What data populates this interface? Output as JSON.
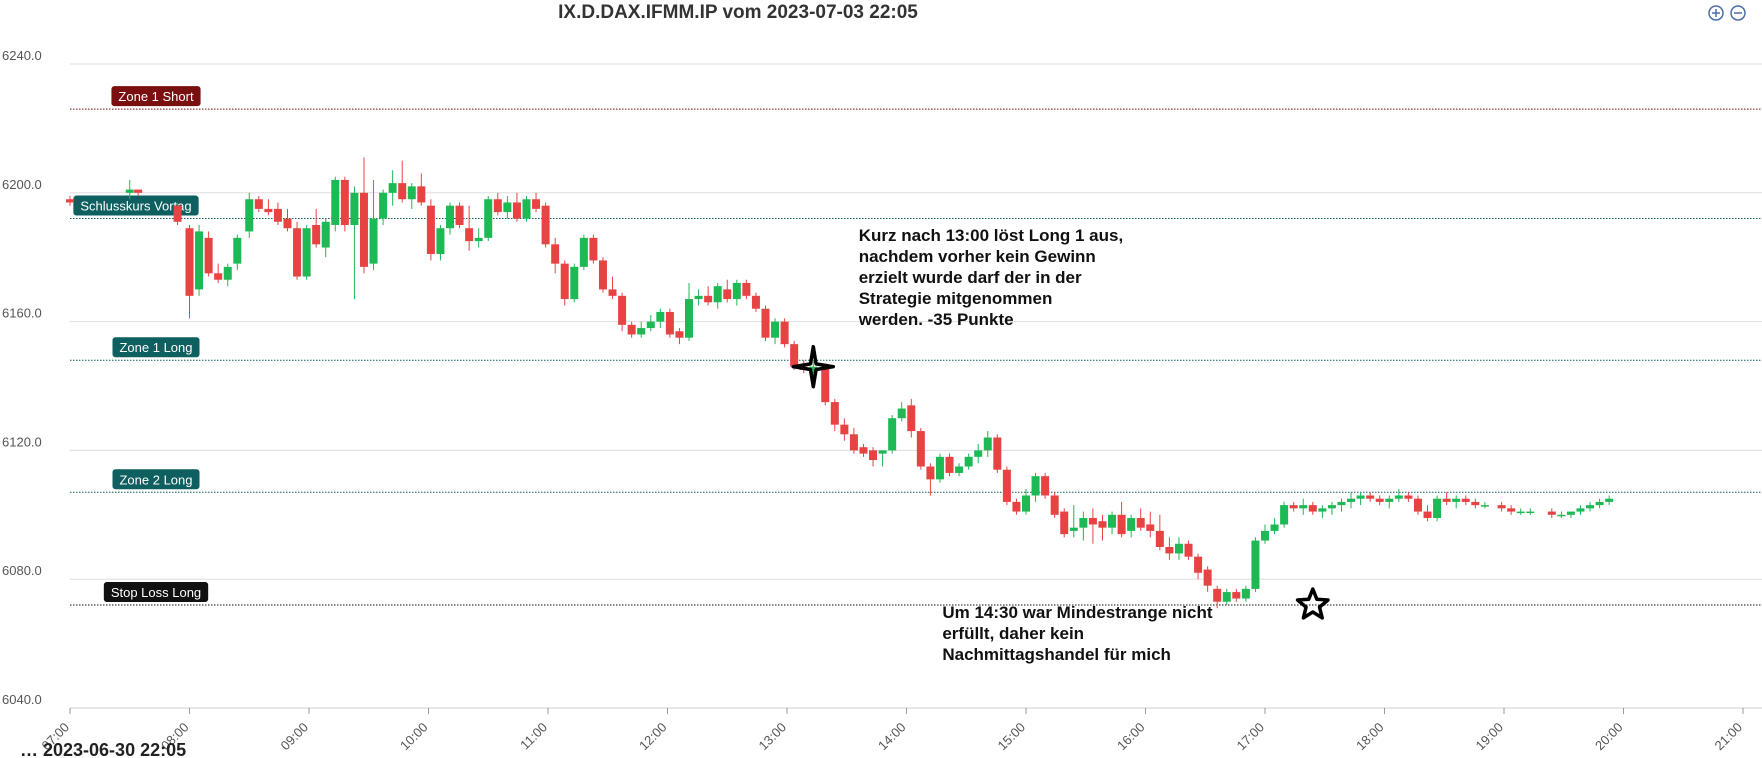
{
  "colors": {
    "bull": "#1db954",
    "bear": "#e74343",
    "grid": "#dddddd",
    "zone_short": "#7a0f0f",
    "zone_long": "#0e5f5f",
    "stop_loss": "#111111"
  },
  "toolbar": {
    "zoom_in_icon": "plus-circle-icon",
    "zoom_out_icon": "minus-circle-icon"
  },
  "chart_data": {
    "type": "candlestick",
    "title": "IX.D.DAX.IFMM.IP vom 2023-07-03 22:05",
    "footer_partial": "… 2023-06-30 22:05",
    "ylim": [
      6040,
      6240
    ],
    "yticks": [
      "6240.0",
      "6200.0",
      "6160.0",
      "6120.0",
      "6080.0",
      "6040.0"
    ],
    "xlim": [
      7.0,
      21.0
    ],
    "xtick_values": [
      7,
      8,
      9,
      10,
      11,
      12,
      13,
      14,
      15,
      16,
      17,
      18,
      19,
      20,
      21
    ],
    "xticks": [
      "07:00",
      "08:00",
      "09:00",
      "10:00",
      "11:00",
      "12:00",
      "13:00",
      "14:00",
      "15:00",
      "16:00",
      "17:00",
      "18:00",
      "19:00",
      "20:00",
      "21:00"
    ],
    "grid": true,
    "levels": [
      {
        "label": "Zone 1 Short",
        "value": 6226,
        "color_key": "zone_short"
      },
      {
        "label": "Schlusskurs Vortag",
        "value": 6192,
        "color_key": "zone_long"
      },
      {
        "label": "Zone 1 Long",
        "value": 6148,
        "color_key": "zone_long"
      },
      {
        "label": "Zone 2 Long",
        "value": 6107,
        "color_key": "zone_long"
      },
      {
        "label": "Stop Loss Long",
        "value": 6072,
        "color_key": "stop_loss"
      }
    ],
    "annotations": [
      {
        "lines": [
          "Kurz nach 13:00 löst Long 1 aus,",
          "nachdem vorher kein Gewinn",
          "erzielt wurde darf der in der",
          "Strategie mitgenommen",
          "werden. -35 Punkte"
        ],
        "x": 13.6,
        "y": 6185
      },
      {
        "lines": [
          "Um 14:30 war Mindestrange nicht",
          "erfüllt, daher kein",
          "Nachmittagshandel für mich"
        ],
        "x": 14.3,
        "y": 6068
      }
    ],
    "markers": [
      {
        "shape": "four-point-star",
        "x": 13.22,
        "y": 6146
      },
      {
        "shape": "five-point-star",
        "x": 17.4,
        "y": 6072
      }
    ],
    "candles": [
      [
        7.0,
        6198,
        6199,
        6196,
        6197
      ],
      [
        7.5,
        6200,
        6204,
        6198,
        6201
      ],
      [
        7.57,
        6201,
        6201,
        6199,
        6200
      ],
      [
        7.9,
        6196,
        6197,
        6190,
        6191
      ],
      [
        8.0,
        6189,
        6190,
        6161,
        6168
      ],
      [
        8.08,
        6170,
        6190,
        6168,
        6188
      ],
      [
        8.16,
        6186,
        6188,
        6174,
        6175
      ],
      [
        8.24,
        6175,
        6178,
        6172,
        6173
      ],
      [
        8.32,
        6173,
        6178,
        6171,
        6177
      ],
      [
        8.4,
        6178,
        6187,
        6176,
        6186
      ],
      [
        8.5,
        6188,
        6200,
        6186,
        6198
      ],
      [
        8.58,
        6198,
        6199,
        6194,
        6195
      ],
      [
        8.66,
        6195,
        6198,
        6193,
        6194
      ],
      [
        8.74,
        6195,
        6197,
        6190,
        6191
      ],
      [
        8.82,
        6192,
        6195,
        6188,
        6189
      ],
      [
        8.9,
        6189,
        6191,
        6173,
        6174
      ],
      [
        8.98,
        6174,
        6190,
        6173,
        6189
      ],
      [
        9.06,
        6190,
        6195,
        6183,
        6184
      ],
      [
        9.14,
        6183,
        6192,
        6180,
        6191
      ],
      [
        9.22,
        6190,
        6205,
        6188,
        6204
      ],
      [
        9.3,
        6204,
        6205,
        6188,
        6190
      ],
      [
        9.38,
        6190,
        6202,
        6167,
        6200
      ],
      [
        9.46,
        6200,
        6211,
        6175,
        6177
      ],
      [
        9.54,
        6178,
        6204,
        6176,
        6192
      ],
      [
        9.62,
        6192,
        6201,
        6190,
        6200
      ],
      [
        9.7,
        6200,
        6207,
        6196,
        6203
      ],
      [
        9.78,
        6203,
        6210,
        6197,
        6198
      ],
      [
        9.86,
        6198,
        6203,
        6195,
        6202
      ],
      [
        9.94,
        6202,
        6206,
        6196,
        6197
      ],
      [
        10.02,
        6196,
        6198,
        6179,
        6181
      ],
      [
        10.1,
        6181,
        6190,
        6179,
        6189
      ],
      [
        10.18,
        6189,
        6197,
        6187,
        6196
      ],
      [
        10.26,
        6196,
        6197,
        6189,
        6190
      ],
      [
        10.34,
        6189,
        6196,
        6182,
        6185
      ],
      [
        10.42,
        6185,
        6189,
        6183,
        6186
      ],
      [
        10.5,
        6186,
        6199,
        6185,
        6198
      ],
      [
        10.58,
        6198,
        6200,
        6193,
        6194
      ],
      [
        10.66,
        6194,
        6199,
        6192,
        6197
      ],
      [
        10.74,
        6197,
        6200,
        6191,
        6192
      ],
      [
        10.82,
        6192,
        6199,
        6191,
        6198
      ],
      [
        10.9,
        6198,
        6200,
        6194,
        6195
      ],
      [
        10.98,
        6196,
        6197,
        6183,
        6184
      ],
      [
        11.06,
        6184,
        6186,
        6175,
        6178
      ],
      [
        11.14,
        6178,
        6179,
        6165,
        6167
      ],
      [
        11.22,
        6167,
        6178,
        6166,
        6177
      ],
      [
        11.3,
        6177,
        6187,
        6176,
        6186
      ],
      [
        11.38,
        6186,
        6187,
        6178,
        6179
      ],
      [
        11.46,
        6179,
        6180,
        6169,
        6170
      ],
      [
        11.54,
        6170,
        6174,
        6167,
        6168
      ],
      [
        11.62,
        6168,
        6169,
        6157,
        6159
      ],
      [
        11.7,
        6159,
        6160,
        6155,
        6156
      ],
      [
        11.78,
        6156,
        6160,
        6155,
        6158
      ],
      [
        11.86,
        6158,
        6162,
        6157,
        6160
      ],
      [
        11.94,
        6160,
        6164,
        6158,
        6163
      ],
      [
        12.02,
        6163,
        6164,
        6155,
        6156
      ],
      [
        12.1,
        6157,
        6158,
        6153,
        6155
      ],
      [
        12.18,
        6155,
        6172,
        6154,
        6167
      ],
      [
        12.26,
        6167,
        6170,
        6165,
        6168
      ],
      [
        12.34,
        6168,
        6171,
        6165,
        6166
      ],
      [
        12.42,
        6166,
        6172,
        6164,
        6171
      ],
      [
        12.5,
        6170,
        6173,
        6166,
        6167
      ],
      [
        12.58,
        6167,
        6173,
        6165,
        6172
      ],
      [
        12.66,
        6172,
        6173,
        6167,
        6168
      ],
      [
        12.74,
        6168,
        6169,
        6163,
        6164
      ],
      [
        12.82,
        6164,
        6165,
        6154,
        6155
      ],
      [
        12.9,
        6155,
        6161,
        6153,
        6160
      ],
      [
        12.98,
        6160,
        6161,
        6152,
        6153
      ],
      [
        13.06,
        6153,
        6154,
        6145,
        6146
      ],
      [
        13.14,
        6146,
        6148,
        6144,
        6145
      ],
      [
        13.22,
        6144,
        6148,
        6143,
        6146
      ],
      [
        13.32,
        6146,
        6147,
        6134,
        6135
      ],
      [
        13.4,
        6135,
        6136,
        6126,
        6128
      ],
      [
        13.48,
        6128,
        6130,
        6123,
        6125
      ],
      [
        13.56,
        6125,
        6127,
        6119,
        6120
      ],
      [
        13.64,
        6121,
        6122,
        6118,
        6119
      ],
      [
        13.72,
        6120,
        6121,
        6115,
        6117
      ],
      [
        13.8,
        6119,
        6120,
        6115,
        6120
      ],
      [
        13.88,
        6120,
        6131,
        6119,
        6130
      ],
      [
        13.96,
        6130,
        6135,
        6129,
        6133
      ],
      [
        14.04,
        6134,
        6136,
        6124,
        6126
      ],
      [
        14.12,
        6126,
        6127,
        6114,
        6115
      ],
      [
        14.2,
        6115,
        6116,
        6106,
        6111
      ],
      [
        14.28,
        6111,
        6119,
        6110,
        6118
      ],
      [
        14.36,
        6118,
        6119,
        6112,
        6113
      ],
      [
        14.44,
        6113,
        6116,
        6112,
        6115
      ],
      [
        14.52,
        6115,
        6119,
        6114,
        6118
      ],
      [
        14.6,
        6118,
        6122,
        6116,
        6120
      ],
      [
        14.68,
        6120,
        6126,
        6118,
        6124
      ],
      [
        14.76,
        6124,
        6125,
        6113,
        6114
      ],
      [
        14.84,
        6114,
        6115,
        6103,
        6104
      ],
      [
        14.92,
        6104,
        6105,
        6100,
        6101
      ],
      [
        15.0,
        6101,
        6108,
        6100,
        6106
      ],
      [
        15.08,
        6106,
        6113,
        6104,
        6112
      ],
      [
        15.16,
        6112,
        6113,
        6105,
        6106
      ],
      [
        15.24,
        6106,
        6107,
        6099,
        6100
      ],
      [
        15.32,
        6101,
        6102,
        6093,
        6094
      ],
      [
        15.4,
        6095,
        6103,
        6093,
        6096
      ],
      [
        15.48,
        6096,
        6101,
        6092,
        6099
      ],
      [
        15.56,
        6099,
        6102,
        6091,
        6097
      ],
      [
        15.64,
        6098,
        6100,
        6092,
        6096
      ],
      [
        15.72,
        6096,
        6101,
        6094,
        6100
      ],
      [
        15.8,
        6100,
        6104,
        6093,
        6094
      ],
      [
        15.88,
        6095,
        6100,
        6093,
        6099
      ],
      [
        15.96,
        6099,
        6102,
        6095,
        6096
      ],
      [
        16.04,
        6097,
        6101,
        6093,
        6095
      ],
      [
        16.12,
        6095,
        6100,
        6089,
        6090
      ],
      [
        16.2,
        6090,
        6093,
        6086,
        6088
      ],
      [
        16.28,
        6088,
        6093,
        6086,
        6091
      ],
      [
        16.36,
        6091,
        6092,
        6086,
        6087
      ],
      [
        16.44,
        6087,
        6088,
        6080,
        6082
      ],
      [
        16.52,
        6083,
        6084,
        6076,
        6078
      ],
      [
        16.6,
        6077,
        6078,
        6071,
        6073
      ],
      [
        16.68,
        6073,
        6077,
        6072,
        6076
      ],
      [
        16.76,
        6076,
        6077,
        6073,
        6074
      ],
      [
        16.84,
        6074,
        6078,
        6073,
        6077
      ],
      [
        16.92,
        6077,
        6093,
        6076,
        6092
      ],
      [
        17.0,
        6092,
        6097,
        6091,
        6095
      ],
      [
        17.08,
        6095,
        6099,
        6094,
        6097
      ],
      [
        17.16,
        6097,
        6104,
        6096,
        6103
      ],
      [
        17.24,
        6103,
        6104,
        6101,
        6102
      ],
      [
        17.32,
        6102,
        6105,
        6100,
        6103
      ],
      [
        17.4,
        6103,
        6104,
        6100,
        6101
      ],
      [
        17.48,
        6101,
        6103,
        6099,
        6102
      ],
      [
        17.56,
        6102,
        6104,
        6100,
        6103
      ],
      [
        17.64,
        6103,
        6105,
        6101,
        6104
      ],
      [
        17.72,
        6104,
        6107,
        6102,
        6105
      ],
      [
        17.8,
        6105,
        6107,
        6103,
        6106
      ],
      [
        17.88,
        6106,
        6107,
        6104,
        6105
      ],
      [
        17.96,
        6105,
        6106,
        6103,
        6104
      ],
      [
        18.04,
        6104,
        6106,
        6102,
        6105
      ],
      [
        18.12,
        6105,
        6108,
        6104,
        6106
      ],
      [
        18.2,
        6106,
        6107,
        6104,
        6105
      ],
      [
        18.28,
        6105,
        6106,
        6100,
        6101
      ],
      [
        18.36,
        6101,
        6103,
        6098,
        6099
      ],
      [
        18.44,
        6099,
        6106,
        6098,
        6105
      ],
      [
        18.52,
        6105,
        6107,
        6103,
        6104
      ],
      [
        18.6,
        6104,
        6106,
        6102,
        6105
      ],
      [
        18.68,
        6105,
        6106,
        6103,
        6104
      ],
      [
        18.76,
        6104,
        6105,
        6102,
        6103
      ],
      [
        18.84,
        6103,
        6104,
        6102,
        6103
      ],
      [
        18.98,
        6103,
        6104,
        6101,
        6102
      ],
      [
        19.06,
        6102,
        6103,
        6100,
        6101
      ],
      [
        19.14,
        6101,
        6102,
        6100,
        6101
      ],
      [
        19.22,
        6101,
        6102,
        6100,
        6101
      ],
      [
        19.4,
        6101,
        6102,
        6099,
        6100
      ],
      [
        19.48,
        6100,
        6101,
        6099,
        6100
      ],
      [
        19.56,
        6100,
        6101,
        6099,
        6101
      ],
      [
        19.64,
        6101,
        6103,
        6100,
        6102
      ],
      [
        19.72,
        6102,
        6104,
        6101,
        6103
      ],
      [
        19.8,
        6103,
        6105,
        6102,
        6104
      ],
      [
        19.88,
        6104,
        6106,
        6103,
        6105
      ]
    ]
  }
}
